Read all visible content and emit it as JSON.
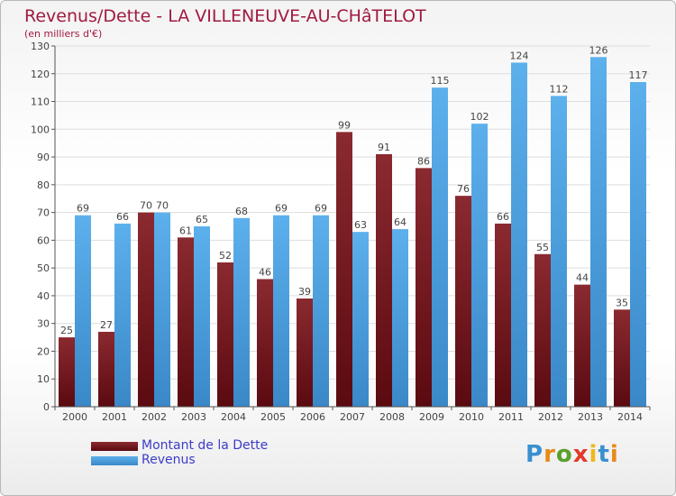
{
  "header": {
    "title": "Revenus/Dette - LA VILLENEUVE-AU-CHâTELOT",
    "subtitle": "(en milliers d'€)"
  },
  "brand": {
    "letters": [
      "P",
      "r",
      "o",
      "x",
      "i",
      "t",
      "i"
    ],
    "colors": [
      "#3a8fd0",
      "#e88a1c",
      "#5aa02c",
      "#e23a2a",
      "#f0b81e",
      "#3a8fd0",
      "#e88a1c"
    ]
  },
  "chart_data": {
    "type": "bar",
    "categories": [
      "2000",
      "2001",
      "2002",
      "2003",
      "2004",
      "2005",
      "2006",
      "2007",
      "2008",
      "2009",
      "2010",
      "2011",
      "2012",
      "2013",
      "2014"
    ],
    "series": [
      {
        "name": "Montant de la Dette",
        "color": "#7a1c20",
        "values": [
          25,
          27,
          70,
          61,
          52,
          46,
          39,
          99,
          91,
          86,
          76,
          66,
          55,
          44,
          35
        ]
      },
      {
        "name": "Revenus",
        "color": "#4aa0e0",
        "values": [
          69,
          66,
          70,
          65,
          68,
          69,
          69,
          63,
          64,
          115,
          102,
          124,
          112,
          126,
          117
        ]
      }
    ],
    "ylim": [
      0,
      130
    ],
    "yticks": [
      0,
      10,
      20,
      30,
      40,
      50,
      60,
      70,
      80,
      90,
      100,
      110,
      120,
      130
    ],
    "grid": true,
    "legend_position": "bottom-left"
  }
}
